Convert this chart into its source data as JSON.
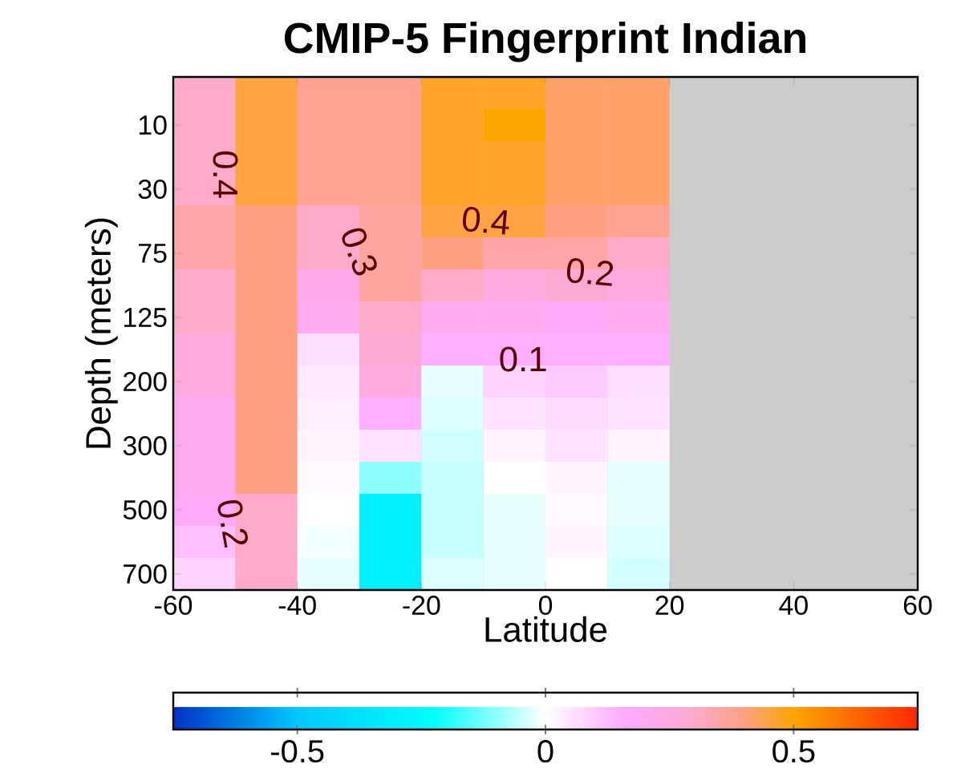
{
  "chart_data": {
    "type": "heatmap",
    "title": "CMIP-5 Fingerprint Indian",
    "xlabel": "Latitude",
    "ylabel": "Depth (meters)",
    "x": [
      -55,
      -45,
      -35,
      -25,
      -15,
      -5,
      5,
      15,
      25,
      35,
      45,
      55
    ],
    "xlim": [
      -60,
      60
    ],
    "xticks": [
      -60,
      -40,
      -20,
      0,
      20,
      40,
      60
    ],
    "y_categories": [
      null,
      "10",
      null,
      "30",
      null,
      "75",
      null,
      "125",
      null,
      "200",
      null,
      "300",
      null,
      "500",
      null,
      "700"
    ],
    "cells": [
      [
        0.3,
        0.45,
        0.38,
        0.38,
        0.47,
        0.47,
        0.42,
        0.42,
        null,
        null,
        null,
        null
      ],
      [
        0.3,
        0.45,
        0.38,
        0.38,
        0.47,
        0.5,
        0.42,
        0.42,
        null,
        null,
        null,
        null
      ],
      [
        0.3,
        0.45,
        0.38,
        0.38,
        0.47,
        0.47,
        0.42,
        0.42,
        null,
        null,
        null,
        null
      ],
      [
        0.3,
        0.45,
        0.38,
        0.38,
        0.47,
        0.47,
        0.42,
        0.42,
        null,
        null,
        null,
        null
      ],
      [
        0.35,
        0.4,
        0.3,
        0.36,
        0.45,
        0.45,
        0.4,
        0.38,
        null,
        null,
        null,
        null
      ],
      [
        0.35,
        0.4,
        0.3,
        0.36,
        0.4,
        0.35,
        0.35,
        0.3,
        null,
        null,
        null,
        null
      ],
      [
        0.3,
        0.4,
        0.22,
        0.36,
        0.3,
        0.25,
        0.28,
        0.25,
        null,
        null,
        null,
        null
      ],
      [
        0.3,
        0.4,
        0.2,
        0.3,
        0.2,
        0.2,
        0.18,
        0.2,
        null,
        null,
        null,
        null
      ],
      [
        0.25,
        0.4,
        0.06,
        0.28,
        0.15,
        0.15,
        0.15,
        0.15,
        null,
        null,
        null,
        null
      ],
      [
        0.25,
        0.4,
        0.04,
        0.25,
        -0.02,
        0.08,
        0.1,
        0.06,
        null,
        null,
        null,
        null
      ],
      [
        0.2,
        0.4,
        0.03,
        0.15,
        -0.03,
        0.05,
        0.07,
        0.05,
        null,
        null,
        null,
        null
      ],
      [
        0.2,
        0.4,
        0.02,
        0.05,
        -0.04,
        0.02,
        0.05,
        0.02,
        null,
        null,
        null,
        null
      ],
      [
        0.2,
        0.4,
        0.01,
        -0.1,
        -0.05,
        0.0,
        0.02,
        -0.02,
        null,
        null,
        null,
        null
      ],
      [
        0.18,
        0.3,
        0.0,
        -0.3,
        -0.05,
        -0.02,
        0.01,
        -0.02,
        null,
        null,
        null,
        null
      ],
      [
        0.12,
        0.3,
        -0.01,
        -0.3,
        -0.05,
        -0.02,
        0.02,
        -0.03,
        null,
        null,
        null,
        null
      ],
      [
        0.08,
        0.3,
        -0.02,
        -0.3,
        -0.03,
        -0.02,
        0.0,
        -0.04,
        null,
        null,
        null,
        null
      ]
    ],
    "clim": [
      -0.75,
      0.75
    ],
    "cticks": [
      -0.5,
      0,
      0.5
    ],
    "annotations": [
      "0.4",
      "0.3",
      "0.4",
      "0.2",
      "0.1",
      "0.2"
    ]
  }
}
